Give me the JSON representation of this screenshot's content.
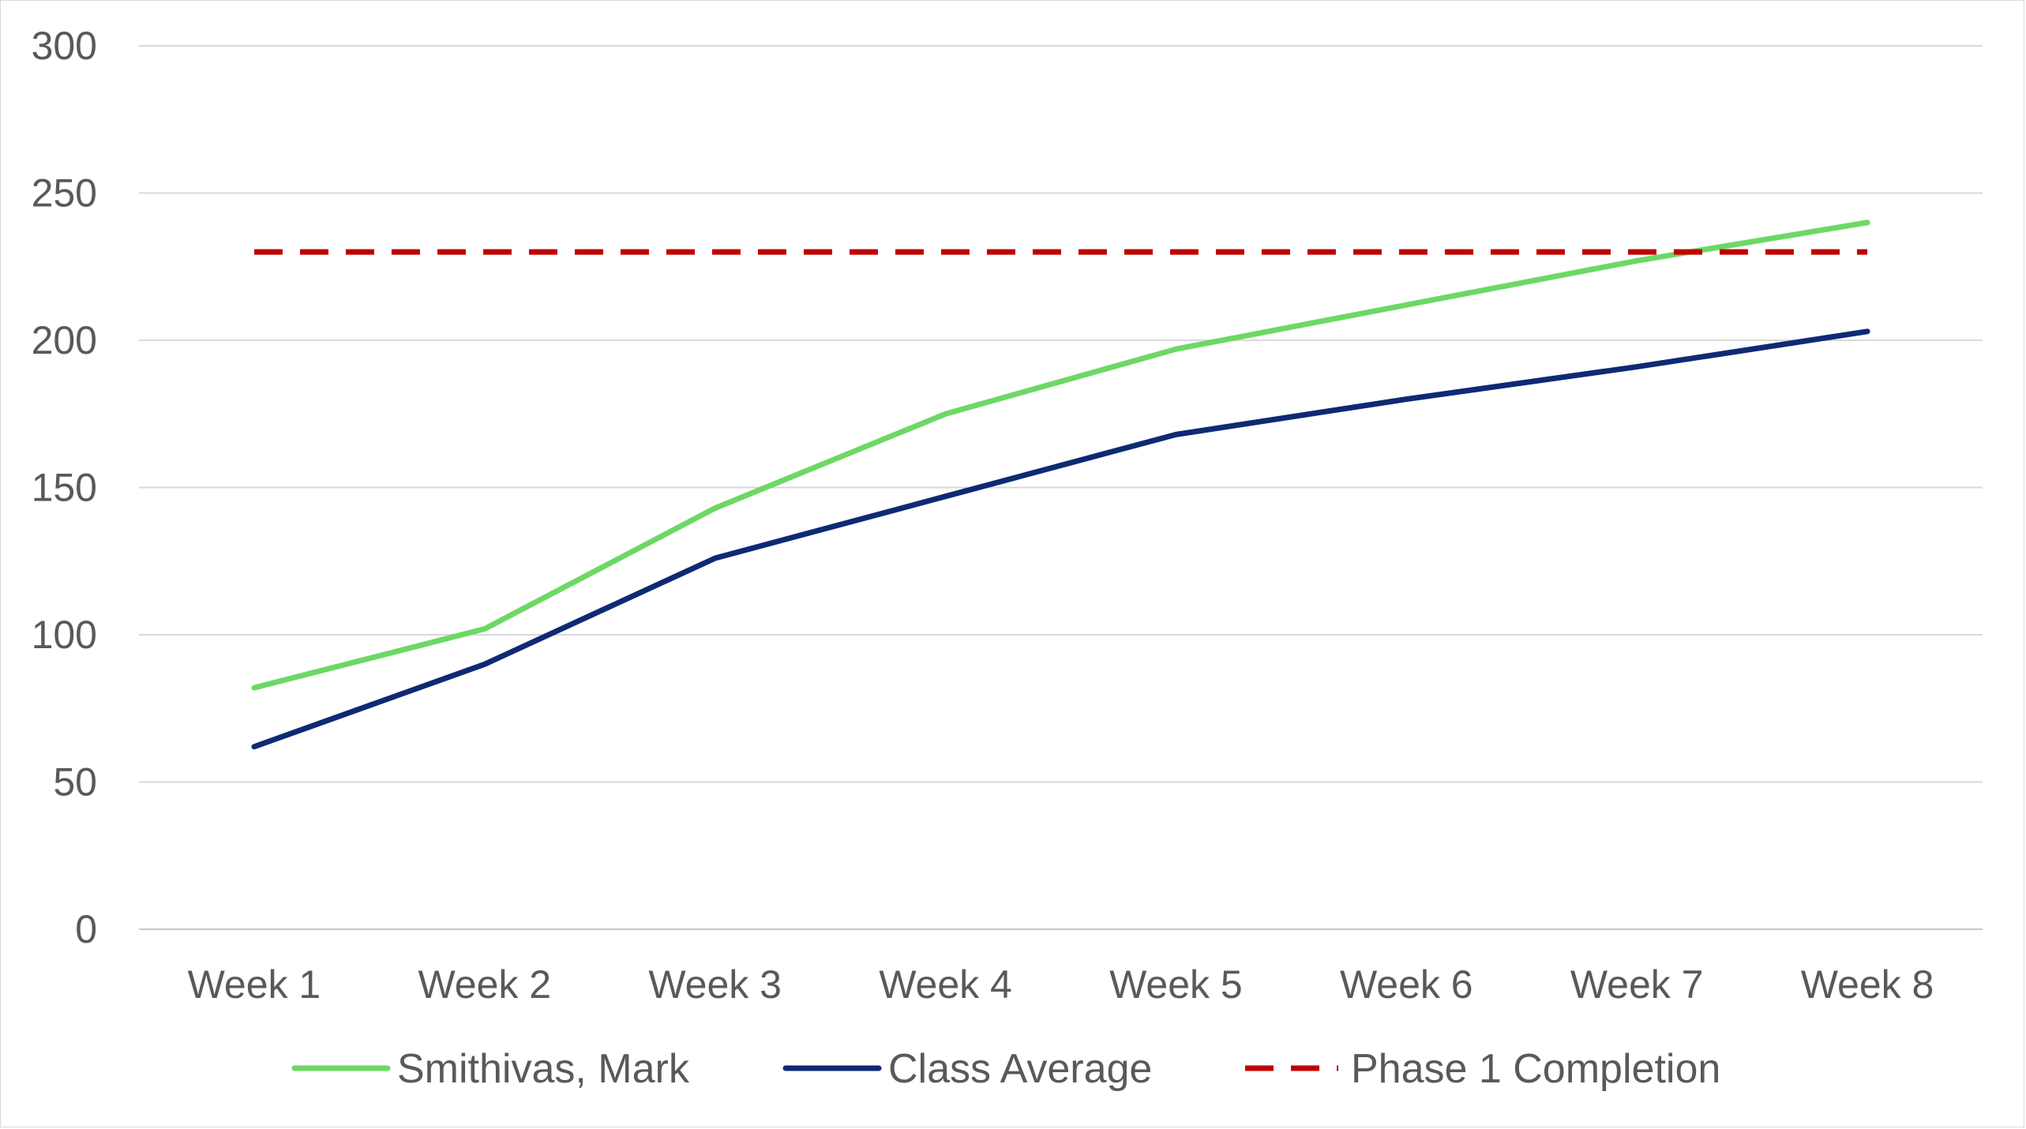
{
  "chart_data": {
    "type": "line",
    "title": "",
    "xlabel": "",
    "ylabel": "",
    "categories": [
      "Week 1",
      "Week 2",
      "Week 3",
      "Week 4",
      "Week 5",
      "Week 6",
      "Week 7",
      "Week 8"
    ],
    "ylim": [
      0,
      300
    ],
    "yticks": [
      0,
      50,
      100,
      150,
      200,
      250,
      300
    ],
    "grid": true,
    "legend_position": "bottom",
    "series": [
      {
        "name": "Smithivas, Mark",
        "values": [
          82,
          102,
          143,
          175,
          197,
          212,
          227,
          240
        ],
        "color": "#6dd865",
        "style": "solid"
      },
      {
        "name": "Class Average",
        "values": [
          62,
          90,
          126,
          147,
          168,
          180,
          191,
          203
        ],
        "color": "#0d2a73",
        "style": "solid"
      },
      {
        "name": "Phase 1 Completion",
        "values": [
          230,
          230,
          230,
          230,
          230,
          230,
          230,
          230
        ],
        "color": "#c00000",
        "style": "dashed"
      }
    ]
  }
}
